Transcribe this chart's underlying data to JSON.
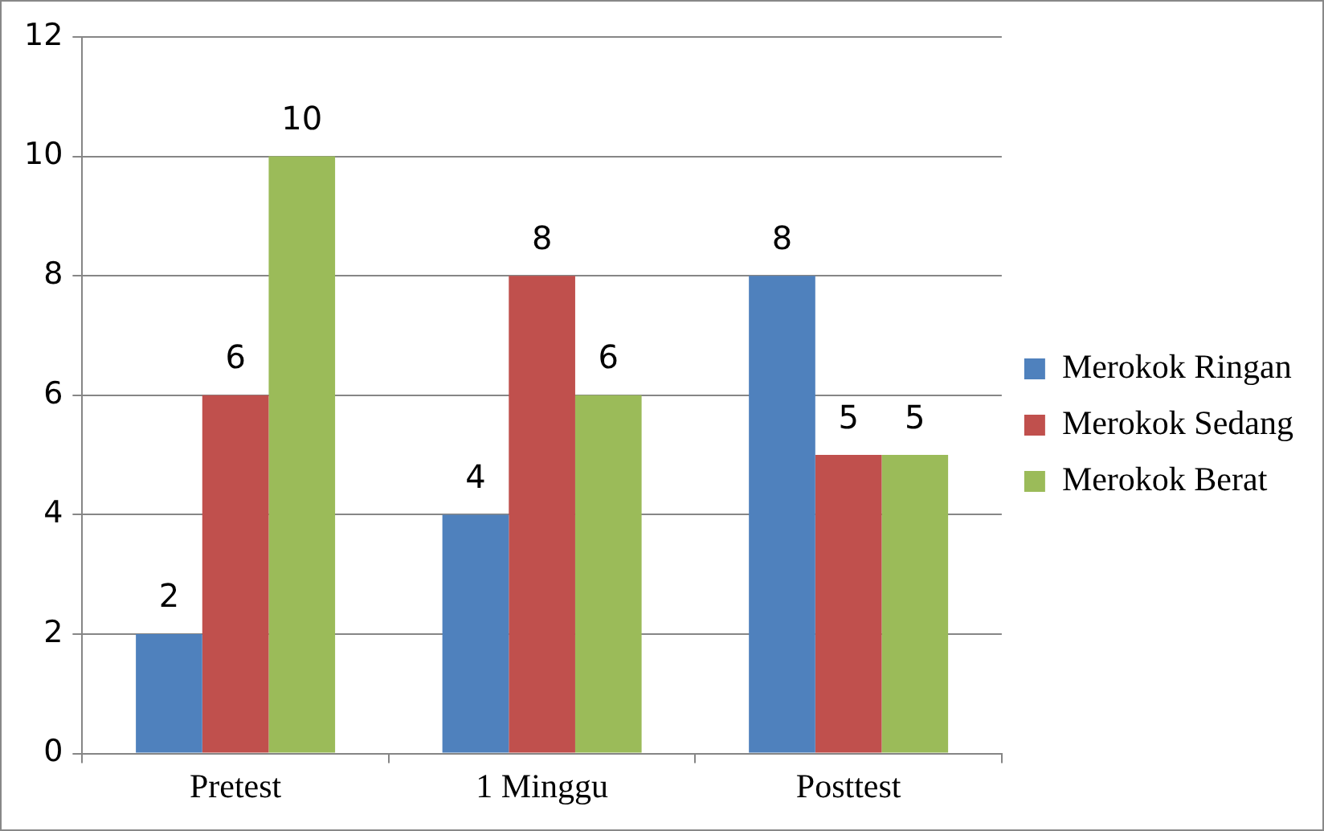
{
  "chart_data": {
    "type": "bar",
    "categories": [
      "Pretest",
      "1 Minggu",
      "Posttest"
    ],
    "series": [
      {
        "name": "Merokok Ringan",
        "color": "#4f81bd",
        "values": [
          2,
          4,
          8
        ]
      },
      {
        "name": "Merokok Sedang",
        "color": "#c0504d",
        "values": [
          6,
          8,
          5
        ]
      },
      {
        "name": "Merokok Berat",
        "color": "#9bbb59",
        "values": [
          10,
          6,
          5
        ]
      }
    ],
    "ylim": [
      0,
      12
    ],
    "yticks": [
      0,
      2,
      4,
      6,
      8,
      10,
      12
    ],
    "grid": "y",
    "legend": "right",
    "data_labels": true
  }
}
